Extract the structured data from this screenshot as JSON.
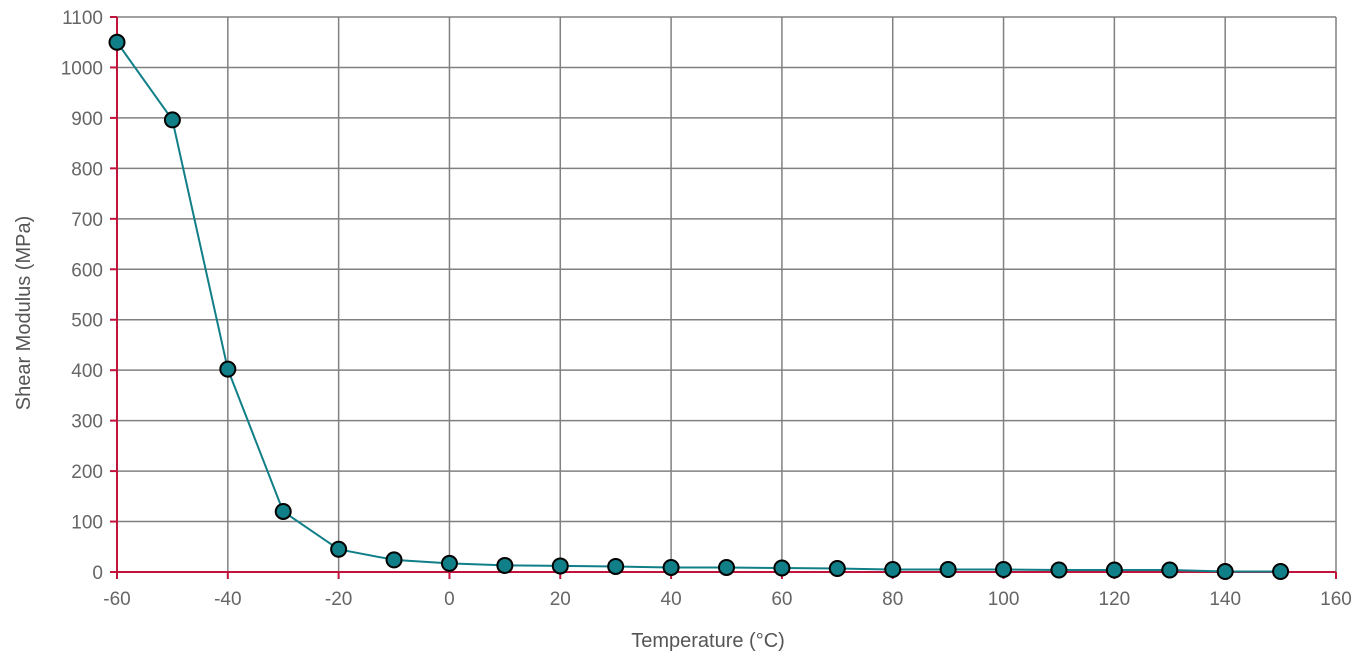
{
  "chart_data": {
    "type": "line",
    "xlabel": "Temperature (°C)",
    "ylabel": "Shear Modulus (MPa)",
    "xlim": [
      -60,
      160
    ],
    "ylim": [
      0,
      1100
    ],
    "xticks": [
      -60,
      -40,
      -20,
      0,
      20,
      40,
      60,
      80,
      100,
      120,
      140,
      160
    ],
    "yticks": [
      0,
      100,
      200,
      300,
      400,
      500,
      600,
      700,
      800,
      900,
      1000,
      1100
    ],
    "xtick_labels": [
      "-60",
      "-40",
      "-20",
      "0",
      "20",
      "40",
      "60",
      "80",
      "100",
      "120",
      "140",
      "160"
    ],
    "ytick_labels": [
      "0",
      "100",
      "200",
      "300",
      "400",
      "500",
      "600",
      "700",
      "800",
      "900",
      "1000",
      "1100"
    ],
    "grid": true,
    "series": [
      {
        "x": [
          -60,
          -50,
          -40,
          -30,
          -20,
          -10,
          0,
          10,
          20,
          30,
          40,
          50,
          60,
          70,
          80,
          90,
          100,
          110,
          120,
          130,
          140,
          150
        ],
        "y": [
          1050,
          896,
          402,
          120,
          45,
          24,
          17,
          13,
          12,
          11,
          9,
          9,
          8,
          7,
          5,
          5,
          5,
          4,
          4,
          4,
          1,
          1
        ],
        "color": "#107f87",
        "marker_color": "#107f87"
      }
    ],
    "colors": {
      "grid": "#808080",
      "axis": "#c0143c",
      "marker_edge": "#000000"
    }
  }
}
